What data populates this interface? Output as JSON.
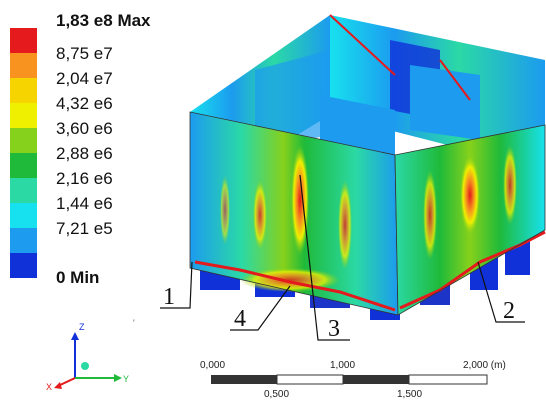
{
  "legend": {
    "entries": [
      {
        "label": "1,83 e8 Max",
        "color": "#e41a1c",
        "bold": true
      },
      {
        "label": "8,75 e7",
        "color": "#f7931e",
        "bold": false
      },
      {
        "label": "2,04 e7",
        "color": "#f5d400",
        "bold": false
      },
      {
        "label": "4,32 e6",
        "color": "#eef000",
        "bold": false
      },
      {
        "label": "3,60 e6",
        "color": "#86d11b",
        "bold": false
      },
      {
        "label": "2,88 e6",
        "color": "#1fba3a",
        "bold": false
      },
      {
        "label": "2,16 e6",
        "color": "#2bd9a5",
        "bold": false
      },
      {
        "label": "1,44 e6",
        "color": "#17e1ee",
        "bold": false
      },
      {
        "label": "7,21 e5",
        "color": "#1c9bef",
        "bold": false
      },
      {
        "label": "0 Min",
        "color": "#1030d8",
        "bold": true
      }
    ]
  },
  "callouts": [
    "1",
    "2",
    "3",
    "4"
  ],
  "triad": {
    "z": "Z",
    "y": "Y",
    "x": "X"
  },
  "scale": {
    "top_labels": [
      "0,000",
      "1,000",
      "2,000 (m)"
    ],
    "bottom_labels": [
      "0,500",
      "1,500"
    ]
  },
  "tick_mark": "'"
}
